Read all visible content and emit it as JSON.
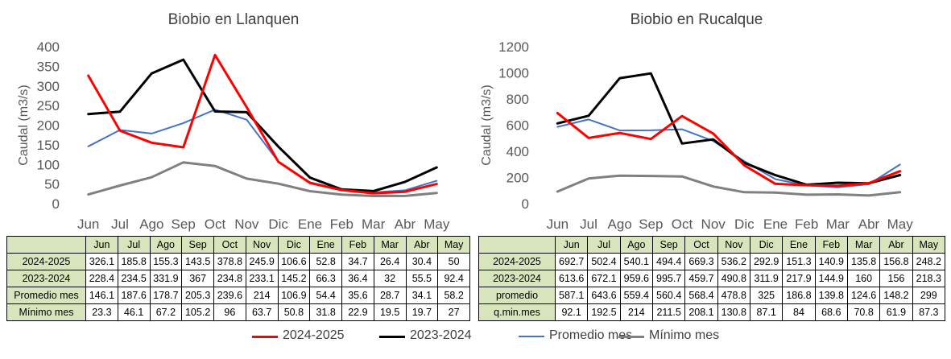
{
  "chart_data": [
    {
      "type": "line",
      "title": "Biobio en Llanquen",
      "ylabel": "Caudal (m3/s)",
      "xlabel": "",
      "ylim": [
        0,
        400
      ],
      "yticks": [
        0,
        50,
        100,
        150,
        200,
        250,
        300,
        350,
        400
      ],
      "categories": [
        "Jun",
        "Jul",
        "Ago",
        "Sep",
        "Oct",
        "Nov",
        "Dic",
        "Ene",
        "Feb",
        "Mar",
        "Abr",
        "May"
      ],
      "series": [
        {
          "name": "2024-2025",
          "color": "#ff0000",
          "width": 3,
          "values": [
            326.1,
            185.8,
            155.3,
            143.5,
            378.8,
            245.9,
            106.6,
            52.8,
            34.7,
            26.4,
            30.4,
            50
          ]
        },
        {
          "name": "2023-2024",
          "color": "#000000",
          "width": 3,
          "values": [
            228.4,
            234.5,
            331.9,
            367,
            234.8,
            233.1,
            145.2,
            66.3,
            36.4,
            32,
            55.5,
            92.4
          ]
        },
        {
          "name": "Promedio mes",
          "color": "#4472c4",
          "width": 2,
          "values": [
            146.1,
            187.6,
            178.7,
            205.3,
            239.6,
            214,
            106.9,
            54.4,
            35.6,
            28.7,
            34.1,
            58.2
          ]
        },
        {
          "name": "Mínimo mes",
          "color": "#808080",
          "width": 3,
          "values": [
            23.3,
            46.1,
            67.2,
            105.2,
            96,
            63.7,
            50.8,
            31.8,
            22.9,
            19.5,
            19.7,
            27
          ]
        }
      ],
      "table": {
        "rows": [
          {
            "label": "2024-2025",
            "values": [
              "326.1",
              "185.8",
              "155.3",
              "143.5",
              "378.8",
              "245.9",
              "106.6",
              "52.8",
              "34.7",
              "26.4",
              "30.4",
              "50"
            ]
          },
          {
            "label": "2023-2024",
            "values": [
              "228.4",
              "234.5",
              "331.9",
              "367",
              "234.8",
              "233.1",
              "145.2",
              "66.3",
              "36.4",
              "32",
              "55.5",
              "92.4"
            ]
          },
          {
            "label": "Promedio mes",
            "values": [
              "146.1",
              "187.6",
              "178.7",
              "205.3",
              "239.6",
              "214",
              "106.9",
              "54.4",
              "35.6",
              "28.7",
              "34.1",
              "58.2"
            ]
          },
          {
            "label": "Mínimo mes",
            "values": [
              "23.3",
              "46.1",
              "67.2",
              "105.2",
              "96",
              "63.7",
              "50.8",
              "31.8",
              "22.9",
              "19.5",
              "19.7",
              "27"
            ]
          }
        ]
      }
    },
    {
      "type": "line",
      "title": "Biobio en Rucalque",
      "ylabel": "Caudal (m3/s)",
      "xlabel": "",
      "ylim": [
        0,
        1200
      ],
      "yticks": [
        0,
        200,
        400,
        600,
        800,
        1000,
        1200
      ],
      "categories": [
        "Jun",
        "Jul",
        "Ago",
        "Sep",
        "Oct",
        "Nov",
        "Dic",
        "Ene",
        "Feb",
        "Mar",
        "Abr",
        "May"
      ],
      "series": [
        {
          "name": "2024-2025",
          "color": "#ff0000",
          "width": 3,
          "values": [
            692.7,
            502.4,
            540.1,
            494.4,
            669.3,
            536.2,
            292.9,
            151.3,
            140.9,
            135.8,
            156.8,
            248.2
          ]
        },
        {
          "name": "2023-2024",
          "color": "#000000",
          "width": 3,
          "values": [
            613.6,
            672.1,
            959.6,
            995.7,
            459.7,
            490.8,
            311.9,
            217.9,
            144.9,
            160,
            156,
            218.3
          ]
        },
        {
          "name": "promedio",
          "color": "#4472c4",
          "width": 2,
          "values": [
            587.1,
            643.6,
            559.4,
            560.4,
            568.4,
            478.8,
            325,
            186.8,
            139.8,
            124.6,
            148.2,
            299
          ]
        },
        {
          "name": "q.min.mes",
          "color": "#808080",
          "width": 3,
          "values": [
            92.1,
            192.5,
            214,
            211.5,
            208.1,
            130.8,
            87.1,
            84,
            68.6,
            70.8,
            61.9,
            87.3
          ]
        }
      ],
      "table": {
        "rows": [
          {
            "label": "2024-2025",
            "values": [
              "692.7",
              "502.4",
              "540.1",
              "494.4",
              "669.3",
              "536.2",
              "292.9",
              "151.3",
              "140.9",
              "135.8",
              "156.8",
              "248.2"
            ]
          },
          {
            "label": "2023-2024",
            "values": [
              "613.6",
              "672.1",
              "959.6",
              "995.7",
              "459.7",
              "490.8",
              "311.9",
              "217.9",
              "144.9",
              "160",
              "156",
              "218.3"
            ]
          },
          {
            "label": "promedio",
            "values": [
              "587.1",
              "643.6",
              "559.4",
              "560.4",
              "568.4",
              "478.8",
              "325",
              "186.8",
              "139.8",
              "124.6",
              "148.2",
              "299"
            ]
          },
          {
            "label": "q.min.mes",
            "values": [
              "92.1",
              "192.5",
              "214",
              "211.5",
              "208.1",
              "130.8",
              "87.1",
              "84",
              "68.6",
              "70.8",
              "61.9",
              "87.3"
            ]
          }
        ]
      }
    }
  ],
  "legend": [
    {
      "label": "2024-2025",
      "color": "#ff0000"
    },
    {
      "label": "2023-2024",
      "color": "#000000"
    },
    {
      "label": "Promedio mes",
      "color": "#4472c4"
    },
    {
      "label": "Mínimo mes",
      "color": "#808080"
    }
  ]
}
